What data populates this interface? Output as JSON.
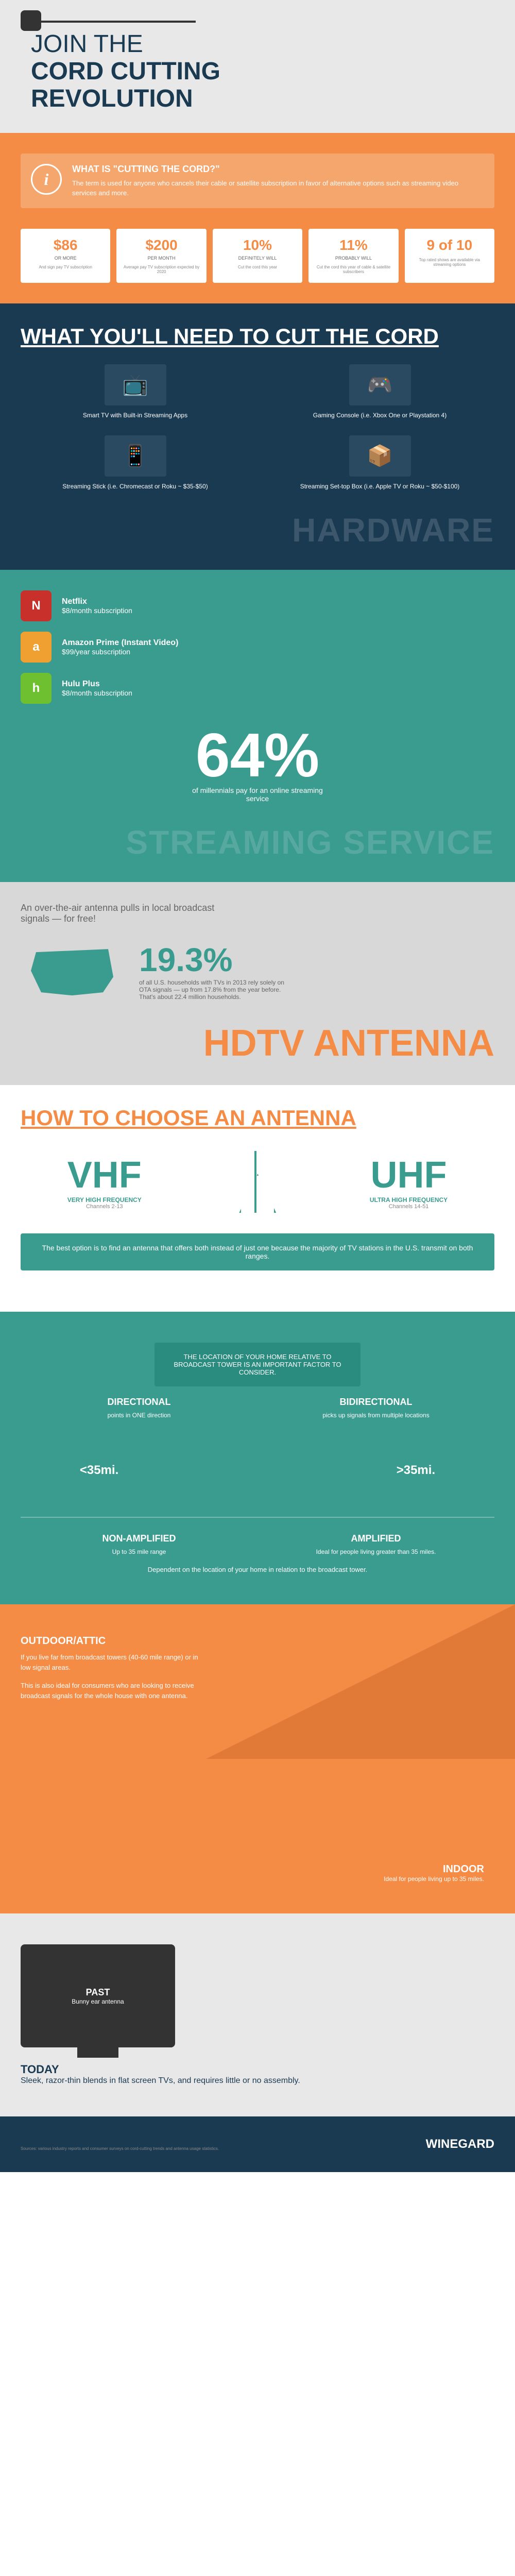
{
  "header": {
    "line1": "JOIN THE",
    "line2": "CORD CUTTING",
    "line3": "REVOLUTION"
  },
  "intro": {
    "title": "WHAT IS \"CUTTING THE CORD?\"",
    "body": "The term is used for anyone who cancels their cable or satellite subscription in favor of alternative options such as streaming video services and more."
  },
  "stats": [
    {
      "big": "$86",
      "sub": "OR MORE",
      "label": "And sign pay TV subscription"
    },
    {
      "big": "$200",
      "sub": "PER MONTH",
      "label": "Average pay TV subscription expected by 2020"
    },
    {
      "big": "10%",
      "sub": "DEFINITELY WILL",
      "label": "Cut the cord this year"
    },
    {
      "big": "11%",
      "sub": "PROBABLY WILL",
      "label": "Cut the cord this year of cable & satellite subscribers"
    },
    {
      "big": "9 of 10",
      "sub": "",
      "label": "Top rated shows are available via streaming options"
    }
  ],
  "need": {
    "title": "WHAT YOU'LL NEED TO CUT THE CORD",
    "items": [
      {
        "icon": "📺",
        "label": "Smart TV with Built-in Streaming Apps"
      },
      {
        "icon": "🎮",
        "label": "Gaming Console (i.e. Xbox One or Playstation 4)"
      },
      {
        "icon": "📱",
        "label": "Streaming Stick (i.e. Chromecast or Roku ~ $35-$50)"
      },
      {
        "icon": "📦",
        "label": "Streaming Set-top Box (i.e. Apple TV or Roku ~ $50-$100)"
      }
    ],
    "ghost": "HARDWARE"
  },
  "streaming": {
    "services": [
      {
        "icon": "N",
        "class": "netflix",
        "name": "Netflix",
        "price": "$8/month subscription"
      },
      {
        "icon": "a",
        "class": "amazon",
        "name": "Amazon Prime (Instant Video)",
        "price": "$99/year subscription"
      },
      {
        "icon": "h",
        "class": "hulu",
        "name": "Hulu Plus",
        "price": "$8/month subscription"
      }
    ],
    "bigstat": {
      "pct": "64%",
      "desc": "of millennials pay for an online streaming service"
    },
    "ghost": "STREAMING SERVICE"
  },
  "antenna": {
    "intro": "An over-the-air antenna pulls in local broadcast signals — for free!",
    "pct": "19.3%",
    "desc": "of all U.S. households with TVs in 2013 rely solely on OTA signals — up from 17.8% from the year before. That's about 22.4 million households.",
    "ghost": "HDTV ANTENNA"
  },
  "choose": {
    "title": "HOW TO CHOOSE AN ANTENNA",
    "vhf": {
      "abbr": "VHF",
      "full": "VERY HIGH FREQUENCY",
      "chan": "Channels 2-13"
    },
    "uhf": {
      "abbr": "UHF",
      "full": "ULTRA HIGH FREQUENCY",
      "chan": "Channels 14-51"
    },
    "note": "The best option is to find an antenna that offers both instead of just one because the majority of TV stations in the U.S. transmit on both ranges."
  },
  "direction": {
    "center": "THE LOCATION OF YOUR HOME RELATIVE TO BROADCAST TOWER IS AN IMPORTANT FACTOR TO CONSIDER.",
    "dir": {
      "title": "DIRECTIONAL",
      "desc": "points in ONE direction"
    },
    "bidir": {
      "title": "BIDIRECTIONAL",
      "desc": "picks up signals from multiple locations"
    },
    "range_low": "<35mi.",
    "range_high": ">35mi.",
    "nonamp": {
      "title": "NON-AMPLIFIED",
      "desc": "Up to 35 mile range"
    },
    "amp": {
      "title": "AMPLIFIED",
      "desc": "Ideal for people living greater than 35 miles."
    },
    "note": "Dependent on the location of your home in relation to the broadcast tower."
  },
  "placement": {
    "outdoor": {
      "title": "OUTDOOR/ATTIC",
      "p1": "If you live far from broadcast towers (40-60 mile range) or in low signal areas.",
      "p2": "This is also ideal for consumers who are looking to receive broadcast signals for the whole house with one antenna."
    },
    "indoor": {
      "title": "INDOOR",
      "desc": "Ideal for people living up to 35 miles."
    }
  },
  "evolution": {
    "past": {
      "title": "PAST",
      "sub": "Bunny ear antenna"
    },
    "today": {
      "title": "TODAY",
      "desc": "Sleek, razor-thin blends in flat screen TVs, and requires little or no assembly."
    }
  },
  "footer": {
    "fine": "Sources: various industry reports and consumer surveys on cord-cutting trends and antenna usage statistics.",
    "logo": "WINEGARD"
  },
  "colors": {
    "navy": "#1a3a52",
    "orange": "#f48c46",
    "teal": "#3a9b8f",
    "grey": "#e8e8e8"
  }
}
